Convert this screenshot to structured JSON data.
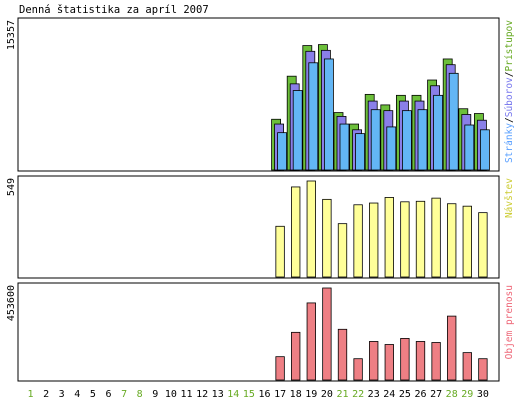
{
  "chart_data": {
    "type": "bar",
    "title": "Denná štatistika za apríl 2007",
    "categories": [
      "1",
      "2",
      "3",
      "4",
      "5",
      "6",
      "7",
      "8",
      "9",
      "10",
      "11",
      "12",
      "13",
      "14",
      "15",
      "16",
      "17",
      "18",
      "19",
      "20",
      "21",
      "22",
      "23",
      "24",
      "25",
      "26",
      "27",
      "28",
      "29",
      "30"
    ],
    "weekend_days": [
      "1",
      "7",
      "8",
      "14",
      "15",
      "21",
      "22",
      "28",
      "29"
    ],
    "day_label_color": "#000000",
    "weekend_label_color": "#66aa22",
    "panels": [
      {
        "id": "hits",
        "ylabel_top": "15357",
        "ymax": 15357,
        "side_label": {
          "parts": [
            {
              "text": "Stránky",
              "color": "#5aa0ff"
            },
            {
              "text": "/",
              "color": "#000000"
            },
            {
              "text": "Súborov",
              "color": "#7777ee"
            },
            {
              "text": "/",
              "color": "#000000"
            },
            {
              "text": "Prístupov",
              "color": "#66aa22"
            }
          ]
        },
        "series": [
          {
            "name": "Prístupov",
            "color": "#6cbf3a",
            "values": [
              0,
              0,
              0,
              0,
              0,
              0,
              0,
              0,
              0,
              0,
              0,
              0,
              0,
              0,
              0,
              0,
              5300,
              9800,
              13000,
              13100,
              6000,
              4800,
              7900,
              6800,
              7800,
              7800,
              9400,
              11600,
              6400,
              5900
            ]
          },
          {
            "name": "Súborov",
            "color": "#8a7fe8",
            "values": [
              0,
              0,
              0,
              0,
              0,
              0,
              0,
              0,
              0,
              0,
              0,
              0,
              0,
              0,
              0,
              0,
              4800,
              9000,
              12400,
              12500,
              5600,
              4200,
              7200,
              6200,
              7200,
              7200,
              8800,
              11000,
              5800,
              5200
            ]
          },
          {
            "name": "Stránky",
            "color": "#63b6f5",
            "values": [
              0,
              0,
              0,
              0,
              0,
              0,
              0,
              0,
              0,
              0,
              0,
              0,
              0,
              0,
              0,
              0,
              3900,
              8300,
              11200,
              11600,
              4800,
              3800,
              6300,
              4500,
              6200,
              6300,
              7800,
              10100,
              4700,
              4200
            ]
          }
        ]
      },
      {
        "id": "visits",
        "ylabel_top": "549",
        "ymax": 549,
        "side_label": {
          "parts": [
            {
              "text": "Návštev",
              "color": "#cccc33"
            }
          ]
        },
        "series": [
          {
            "name": "Návštev",
            "color": "#ffff99",
            "values": [
              0,
              0,
              0,
              0,
              0,
              0,
              0,
              0,
              0,
              0,
              0,
              0,
              0,
              0,
              0,
              0,
              290,
              515,
              549,
              444,
              305,
              413,
              423,
              455,
              430,
              433,
              451,
              419,
              405,
              368
            ]
          }
        ]
      },
      {
        "id": "bytes",
        "ylabel_top": "453600",
        "ymax": 453600,
        "side_label": {
          "parts": [
            {
              "text": "Objem prenosu",
              "color": "#ee6677"
            }
          ]
        },
        "series": [
          {
            "name": "Objem prenosu",
            "color": "#ee7f84",
            "values": [
              0,
              0,
              0,
              0,
              0,
              0,
              0,
              0,
              0,
              0,
              0,
              0,
              0,
              0,
              0,
              0,
              115000,
              235000,
              380000,
              453600,
              250000,
              105000,
              190000,
              175000,
              205000,
              190000,
              185000,
              315000,
              135000,
              105000
            ]
          }
        ]
      }
    ]
  }
}
